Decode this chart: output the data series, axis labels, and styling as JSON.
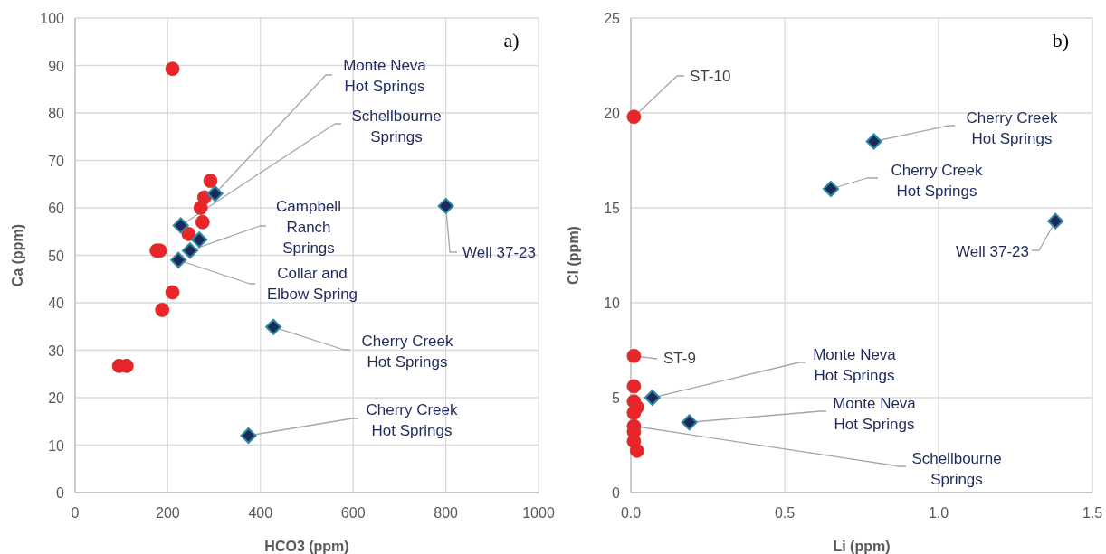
{
  "chart_data": [
    {
      "type": "scatter",
      "xlabel": "HCO3 (ppm)",
      "ylabel": "Ca (ppm)",
      "xlim": [
        0,
        1000
      ],
      "ylim": [
        0,
        100
      ],
      "xticks": [
        0,
        200,
        400,
        600,
        800,
        1000
      ],
      "yticks": [
        0,
        10,
        20,
        30,
        40,
        50,
        60,
        70,
        80,
        90,
        100
      ],
      "grid": true,
      "series": [
        {
          "color": "#e8262a",
          "marker": "circle",
          "x": [
            210,
            292,
            279,
            271,
            275,
            245,
            176,
            183,
            210,
            188,
            95,
            111
          ],
          "values": [
            89.3,
            65.7,
            62.2,
            60,
            57,
            54.5,
            51,
            51,
            42.2,
            38.5,
            26.7,
            26.7
          ]
        },
        {
          "color": "#1b2a5a",
          "marker": "diamond",
          "x": [
            302,
            228,
            268,
            248,
            223,
            428,
            374,
            800
          ],
          "values": [
            63,
            56.3,
            53.3,
            51,
            49,
            34.9,
            12,
            60.4
          ]
        }
      ],
      "annotations": [
        "a)",
        {
          "text": "Monte Neva\nHot Springs",
          "x": 302,
          "y": 63
        },
        {
          "text": "Schellbourne\nSprings",
          "x": 228,
          "y": 56.3
        },
        {
          "text": "Campbell\nRanch\nSprings",
          "x": 248,
          "y": 51
        },
        {
          "text": "Collar and\nElbow Spring",
          "x": 223,
          "y": 49
        },
        {
          "text": "Cherry Creek\nHot Springs",
          "x": 428,
          "y": 34.9
        },
        {
          "text": "Cherry Creek\nHot Springs",
          "x": 374,
          "y": 12
        },
        {
          "text": "Well 37-23",
          "x": 800,
          "y": 60.4
        }
      ]
    },
    {
      "type": "scatter",
      "xlabel": "Li (ppm)",
      "ylabel": "Cl (ppm)",
      "xlim": [
        0,
        1.5
      ],
      "ylim": [
        0,
        25
      ],
      "xticks": [
        {
          "value": 0,
          "label": "0.0"
        },
        {
          "value": 0.5,
          "label": "0.5"
        },
        {
          "value": 1,
          "label": "1.0"
        },
        {
          "value": 1.5,
          "label": "1.5"
        }
      ],
      "yticks": [
        0,
        5,
        10,
        15,
        20,
        25
      ],
      "grid": true,
      "series": [
        {
          "color": "#e8262a",
          "marker": "circle",
          "x": [
            0.01,
            0.01,
            0.01,
            0.01,
            0.02,
            0.01,
            0.01,
            0.01,
            0.01,
            0.02
          ],
          "values": [
            19.8,
            7.2,
            5.6,
            4.8,
            4.5,
            4.2,
            3.5,
            3.2,
            2.7,
            2.2
          ]
        },
        {
          "color": "#1b2a5a",
          "marker": "diamond",
          "x": [
            0.79,
            0.65,
            1.38,
            0.07,
            0.19
          ],
          "values": [
            18.5,
            16,
            14.3,
            5,
            3.7
          ]
        }
      ],
      "annotations": [
        "b)",
        {
          "text": "ST-10",
          "x": 0.01,
          "y": 19.8
        },
        {
          "text": "Cherry Creek\nHot Springs",
          "x": 0.79,
          "y": 18.5
        },
        {
          "text": "Cherry Creek\nHot Springs",
          "x": 0.65,
          "y": 16
        },
        {
          "text": "Well 37-23",
          "x": 1.38,
          "y": 14.3
        },
        {
          "text": "ST-9",
          "x": 0.01,
          "y": 7.2
        },
        {
          "text": "Monte Neva\nHot Springs",
          "x": 0.07,
          "y": 5
        },
        {
          "text": "Monte Neva\nHot Springs",
          "x": 0.19,
          "y": 3.7
        },
        {
          "text": "Schellbourne\nSprings",
          "x": 0.01,
          "y": 3.5
        }
      ]
    }
  ]
}
